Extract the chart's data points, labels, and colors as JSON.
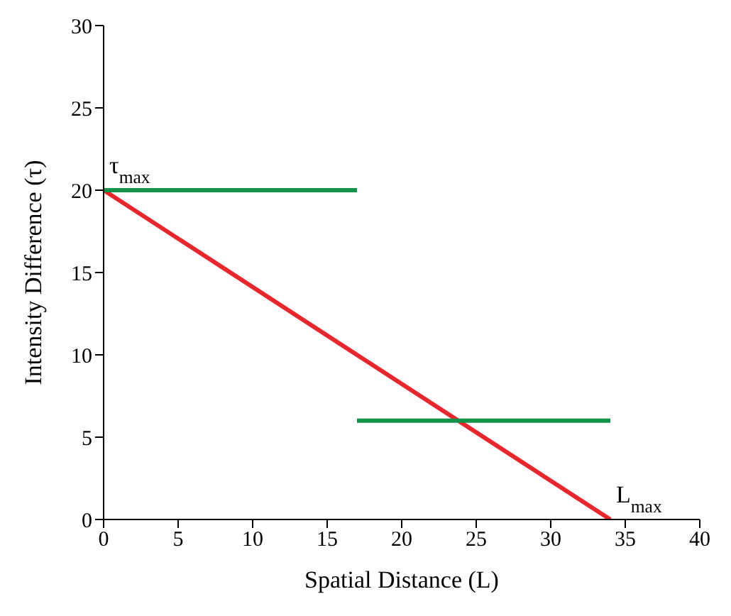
{
  "chart_data": {
    "type": "line",
    "xlabel": "Spatial Distance (L)",
    "ylabel": "Intensity Difference (τ)",
    "series": [
      {
        "color": "#e8262b",
        "x": [
          0,
          34
        ],
        "values": [
          20,
          0
        ]
      },
      {
        "color": "#13934a",
        "x": [
          0,
          17
        ],
        "values": [
          20,
          20
        ]
      },
      {
        "color": "#13934a",
        "x": [
          17,
          34
        ],
        "values": [
          6,
          6
        ]
      }
    ],
    "xlim": [
      0,
      40
    ],
    "xticks": [
      0,
      5,
      10,
      15,
      20,
      25,
      30,
      35,
      40
    ],
    "ylim": [
      0,
      30
    ],
    "yticks": [
      0,
      5,
      10,
      15,
      20,
      25,
      30
    ],
    "grid": false,
    "marker": "none",
    "line_style": "solid",
    "annotations": [
      {
        "text": "τ$_{max}$",
        "x": 0,
        "y": 20
      },
      {
        "text": "L$_{max}$",
        "x": 34,
        "y": 0
      }
    ]
  }
}
